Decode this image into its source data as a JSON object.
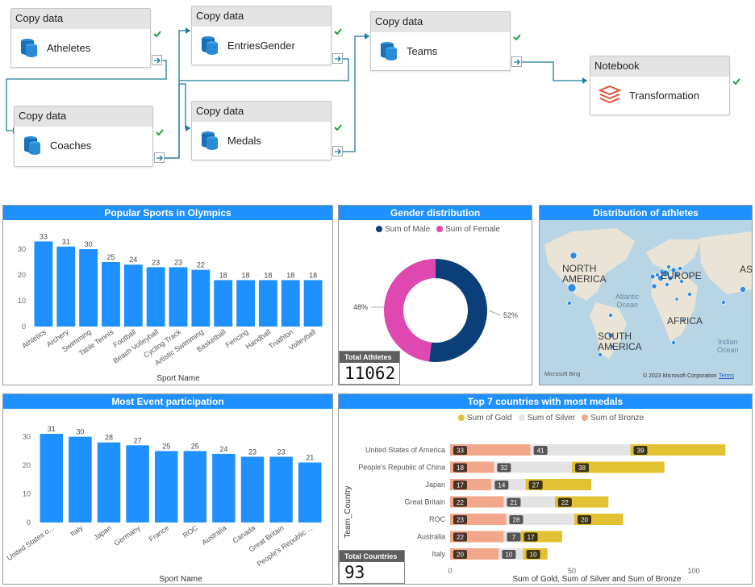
{
  "pipeline": {
    "activities": [
      {
        "type": "Copy data",
        "name": "Atheletes"
      },
      {
        "type": "Copy data",
        "name": "Coaches"
      },
      {
        "type": "Copy data",
        "name": "EntriesGender"
      },
      {
        "type": "Copy data",
        "name": "Medals"
      },
      {
        "type": "Copy data",
        "name": "Teams"
      },
      {
        "type": "Notebook",
        "name": "Transformation"
      }
    ]
  },
  "sports": {
    "title": "Popular Sports in Olympics",
    "xlabel": "Sport Name"
  },
  "gender": {
    "title": "Gender distribution",
    "legend_male": "Sum of Male",
    "legend_female": "Sum of Female",
    "male_pct_label": "52%",
    "female_pct_label": "48%",
    "card_label": "Total Athletes",
    "card_value": "11062"
  },
  "map": {
    "title": "Distribution of athletes",
    "labels": {
      "north_america": "NORTH\nAMERICA",
      "europe": "EUROPE",
      "as": "AS",
      "atlantic": "Atlantic\nOcean",
      "africa": "AFRICA",
      "south_america": "SOUTH\nAMERICA",
      "indian": "Indian\nOcean"
    },
    "attribution_left": "Microsoft Bing",
    "attribution_right": "© 2023 Microsoft Corporation",
    "terms": "Terms"
  },
  "events": {
    "title": "Most Event participation",
    "xlabel": "Sport Name"
  },
  "medals": {
    "title": "Top 7 countries with most medals",
    "legend_gold": "Sum of Gold",
    "legend_silver": "Sum of Silver",
    "legend_bronze": "Sum of Bronze",
    "ylabel": "Team_Country",
    "xlabel": "Sum of Gold, Sum of Silver and Sum of Bronze",
    "card_label": "Total Countries",
    "card_value": "93"
  },
  "colors": {
    "accent": "#1e90ff",
    "bar": "#1e90ff",
    "male": "#0a3f7a",
    "female": "#e048b1",
    "gold": "#e2c232",
    "silver": "#e3e3e3",
    "bronze": "#f2a68a"
  },
  "chart_data": [
    {
      "type": "bar",
      "title": "Popular Sports in Olympics",
      "xlabel": "Sport Name",
      "ylabel": "",
      "categories": [
        "Athletics",
        "Archery",
        "Swimming",
        "Table Tennis",
        "Football",
        "Beach Volleyball",
        "Cycling Track",
        "Artistic Swimming",
        "Basketball",
        "Fencing",
        "Handball",
        "Triathlon",
        "Volleyball"
      ],
      "values": [
        33,
        31,
        30,
        25,
        24,
        23,
        23,
        22,
        18,
        18,
        18,
        18,
        18
      ],
      "ylim": [
        0,
        35
      ],
      "yticks": [
        0,
        10,
        20,
        30
      ]
    },
    {
      "type": "pie",
      "title": "Gender distribution",
      "categories": [
        "Sum of Male",
        "Sum of Female"
      ],
      "values": [
        52,
        48
      ]
    },
    {
      "type": "bar",
      "title": "Most Event participation",
      "xlabel": "Sport Name",
      "ylabel": "",
      "categories": [
        "United States o...",
        "Italy",
        "Japan",
        "Germany",
        "France",
        "ROC",
        "Australia",
        "Canada",
        "Great Britain",
        "People's Republic ..."
      ],
      "values": [
        31,
        30,
        28,
        27,
        25,
        25,
        24,
        23,
        23,
        21
      ],
      "ylim": [
        0,
        33
      ],
      "yticks": [
        0,
        10,
        20,
        30
      ]
    },
    {
      "type": "bar",
      "orientation": "horizontal",
      "stacked": true,
      "title": "Top 7 countries with most medals",
      "xlabel": "Sum of Gold, Sum of Silver and Sum of Bronze",
      "ylabel": "Team_Country",
      "categories": [
        "United States of America",
        "People's Republic of China",
        "Japan",
        "Great Britain",
        "ROC",
        "Australia",
        "Italy"
      ],
      "series": [
        {
          "name": "Sum of Bronze",
          "values": [
            33,
            18,
            17,
            22,
            23,
            22,
            20
          ]
        },
        {
          "name": "Sum of Silver",
          "values": [
            41,
            32,
            14,
            21,
            28,
            7,
            10
          ]
        },
        {
          "name": "Sum of Gold",
          "values": [
            39,
            38,
            27,
            22,
            20,
            17,
            10
          ]
        }
      ],
      "xlim": [
        0,
        125
      ],
      "xticks": [
        0,
        50,
        100
      ]
    }
  ]
}
